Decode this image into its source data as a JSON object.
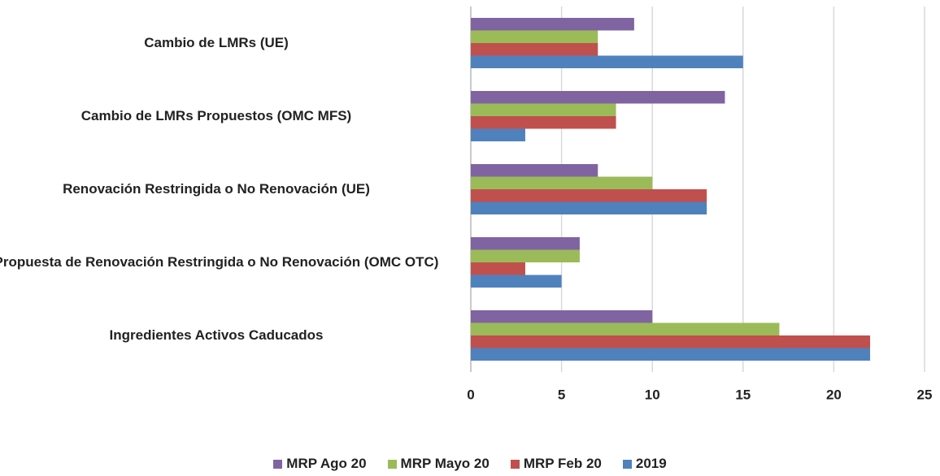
{
  "chart_data": {
    "type": "bar",
    "orientation": "horizontal",
    "categories": [
      "Cambio de LMRs (UE)",
      "Cambio de LMRs Propuestos (OMC MFS)",
      "Renovación Restringida o No Renovación (UE)",
      "Propuesta de Renovación Restringida o No Renovación (OMC OTC)",
      "Ingredientes Activos Caducados"
    ],
    "series": [
      {
        "name": "MRP Ago 20",
        "color": "#8064a2",
        "values": [
          9,
          14,
          7,
          6,
          10
        ]
      },
      {
        "name": "MRP Mayo 20",
        "color": "#9bbb59",
        "values": [
          7,
          8,
          10,
          6,
          17
        ]
      },
      {
        "name": "MRP Feb 20",
        "color": "#c0504d",
        "values": [
          7,
          8,
          13,
          3,
          22
        ]
      },
      {
        "name": "2019",
        "color": "#4f81bd",
        "values": [
          15,
          3,
          13,
          5,
          22
        ]
      }
    ],
    "xlim": [
      0,
      25
    ],
    "xticks": [
      0,
      5,
      10,
      15,
      20,
      25
    ],
    "grid": true,
    "legend": "bottom"
  }
}
